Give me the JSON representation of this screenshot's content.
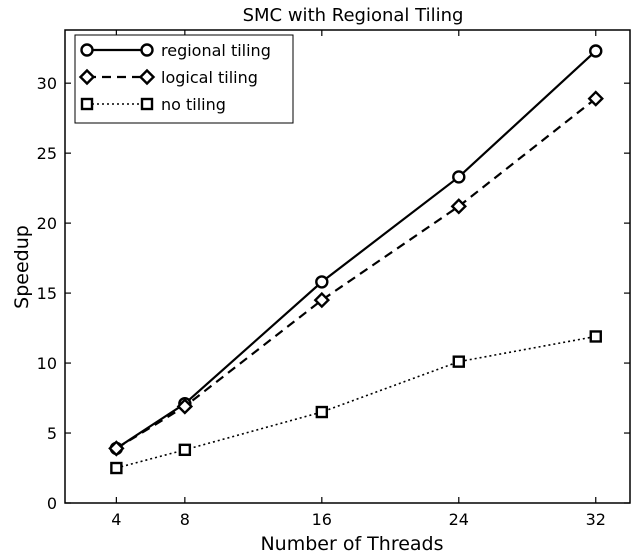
{
  "chart_data": {
    "type": "line",
    "title": "SMC with Regional Tiling",
    "xlabel": "Number of Threads",
    "ylabel": "Speedup",
    "x": [
      4,
      8,
      16,
      24,
      32
    ],
    "xticks": [
      "4",
      "8",
      "16",
      "24",
      "32"
    ],
    "yticks": [
      "0",
      "5",
      "10",
      "15",
      "20",
      "25",
      "30"
    ],
    "xlim": [
      1,
      34
    ],
    "ylim": [
      0,
      33.8
    ],
    "grid": false,
    "legend_position": "top-left",
    "series": [
      {
        "name": "regional tiling",
        "values": [
          3.9,
          7.1,
          15.8,
          23.3,
          32.3
        ],
        "marker": "circle",
        "line": "solid",
        "color": "#000000"
      },
      {
        "name": "logical tiling",
        "values": [
          3.9,
          6.9,
          14.5,
          21.2,
          28.9
        ],
        "marker": "diamond",
        "line": "dashed",
        "color": "#000000"
      },
      {
        "name": "no tiling",
        "values": [
          2.5,
          3.8,
          6.5,
          10.1,
          11.9
        ],
        "marker": "square",
        "line": "dotted",
        "color": "#000000"
      }
    ]
  }
}
